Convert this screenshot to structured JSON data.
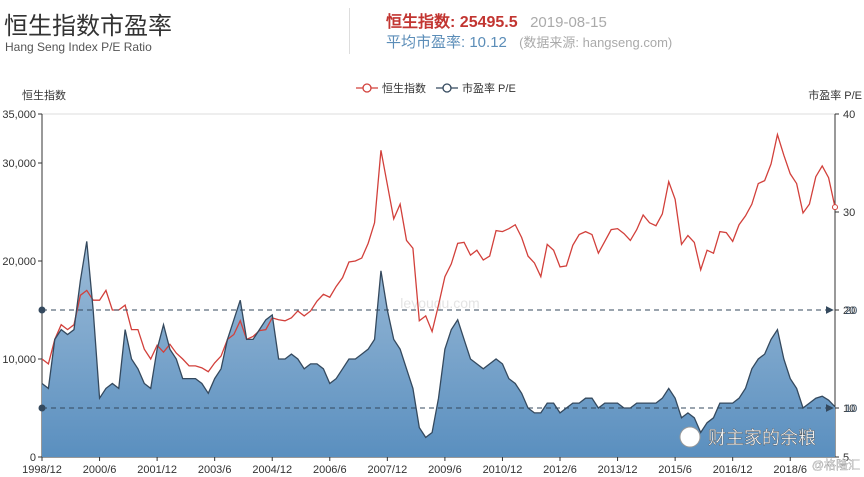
{
  "header": {
    "title": "恒生指数市盈率",
    "subtitle": "Hang Seng Index P/E Ratio",
    "index_label": "恒生指数:",
    "index_value": 25495.5,
    "date": "2019-08-15",
    "pe_label": "平均市盈率:",
    "pe_value": 10.12,
    "source": "(数据来源: hangseng.com)"
  },
  "chart_data": {
    "type": "line",
    "ylabel": "恒生指数",
    "y2label": "市盈率 P/E",
    "legend": "top",
    "grid": false,
    "watermark": "leyouqu.com",
    "categories": [
      "1998/12",
      null,
      null,
      null,
      null,
      null,
      null,
      null,
      null,
      "2000/6",
      null,
      null,
      null,
      null,
      null,
      null,
      null,
      null,
      "2001/12",
      null,
      null,
      null,
      null,
      null,
      null,
      null,
      null,
      "2003/6",
      null,
      null,
      null,
      null,
      null,
      null,
      null,
      null,
      "2004/12",
      null,
      null,
      null,
      null,
      null,
      null,
      null,
      null,
      "2006/6",
      null,
      null,
      null,
      null,
      null,
      null,
      null,
      null,
      "2007/12",
      null,
      null,
      null,
      null,
      null,
      null,
      null,
      null,
      "2009/6",
      null,
      null,
      null,
      null,
      null,
      null,
      null,
      null,
      "2010/12",
      null,
      null,
      null,
      null,
      null,
      null,
      null,
      null,
      "2012/6",
      null,
      null,
      null,
      null,
      null,
      null,
      null,
      null,
      "2013/12",
      null,
      null,
      null,
      null,
      null,
      null,
      null,
      null,
      "2015/6",
      null,
      null,
      null,
      null,
      null,
      null,
      null,
      null,
      "2016/12",
      null,
      null,
      null,
      null,
      null,
      null,
      null,
      null,
      "2018/6",
      null,
      null,
      null,
      null,
      null,
      null,
      null
    ],
    "ylim": [
      0,
      35000
    ],
    "yticks": [
      0,
      {
        "value": 10000,
        "label": "10,000"
      },
      {
        "value": 20000,
        "label": "20,000"
      },
      {
        "value": 30000,
        "label": "30,000"
      },
      {
        "value": 35000,
        "label": "35,000"
      }
    ],
    "y2lim": [
      5,
      40
    ],
    "y2ticks": [
      5,
      10,
      20,
      30,
      40
    ],
    "mark_lines": [
      20,
      10
    ],
    "series": [
      {
        "name": "恒生指数",
        "color": "#d2403b",
        "values": [
          10000,
          9500,
          12000,
          13500,
          13000,
          13500,
          16500,
          17000,
          16000,
          16000,
          17000,
          15000,
          15000,
          15500,
          13000,
          13000,
          11000,
          10000,
          11400,
          10700,
          11500,
          10600,
          10000,
          9300,
          9300,
          9100,
          8700,
          9600,
          10300,
          12000,
          12500,
          13900,
          12000,
          12300,
          12900,
          13000,
          14200,
          14000,
          13900,
          14200,
          14900,
          14400,
          14900,
          15900,
          16600,
          16300,
          17400,
          18300,
          19900,
          20000,
          20300,
          21800,
          23900,
          31300,
          27800,
          24300,
          25800,
          22100,
          21300,
          13900,
          14400,
          12800,
          15500,
          18400,
          19700,
          21800,
          21900,
          20600,
          21100,
          20100,
          20500,
          23100,
          23000,
          23300,
          23700,
          22400,
          20500,
          19800,
          18400,
          21700,
          21100,
          19400,
          19500,
          21600,
          22700,
          23000,
          22700,
          20800,
          22000,
          23200,
          23300,
          22800,
          22100,
          23200,
          24700,
          23900,
          23600,
          24800,
          28100,
          26300,
          21700,
          22600,
          21900,
          19100,
          21100,
          20800,
          23000,
          22900,
          22000,
          23700,
          24600,
          25800,
          27900,
          28200,
          29900,
          32900,
          30800,
          28900,
          27900,
          24900,
          25800,
          28600,
          29700,
          28500,
          25495.5
        ]
      },
      {
        "name": "市盈率 P/E",
        "color": "#34495e",
        "axis": "y2",
        "values": [
          12.5,
          12,
          17,
          18,
          17.5,
          18,
          23,
          27,
          20,
          11,
          12,
          12.5,
          12,
          18,
          15,
          14,
          12.5,
          12,
          16,
          18.5,
          16,
          15,
          13,
          13,
          13,
          12.5,
          11.5,
          13,
          14,
          17,
          19,
          21,
          17,
          17,
          18,
          19,
          19.5,
          15,
          15,
          15.5,
          15,
          14,
          14.5,
          14.5,
          14,
          12.5,
          13,
          14,
          15,
          15,
          15.5,
          16,
          17,
          24,
          20,
          17,
          16,
          14,
          12,
          8,
          7,
          7.5,
          11,
          16,
          18,
          19,
          17,
          15,
          14.5,
          14,
          14.5,
          15,
          14.5,
          13,
          12.5,
          11.5,
          10,
          9.5,
          9.5,
          10.5,
          10.5,
          9.5,
          10,
          10.5,
          10.5,
          11,
          11,
          10,
          10.5,
          10.5,
          10.5,
          10,
          10,
          10.5,
          10.5,
          10.5,
          10.5,
          11,
          12,
          11,
          9,
          9.5,
          9,
          7.5,
          8.5,
          9,
          10.5,
          10.5,
          10.5,
          11,
          12,
          14,
          15,
          15.5,
          17,
          18,
          15,
          13,
          12,
          10,
          10.5,
          11,
          11.2,
          10.8,
          10.12
        ]
      }
    ]
  },
  "overlay": {
    "account": "财主家的余粮",
    "credit": "@格隆汇"
  }
}
